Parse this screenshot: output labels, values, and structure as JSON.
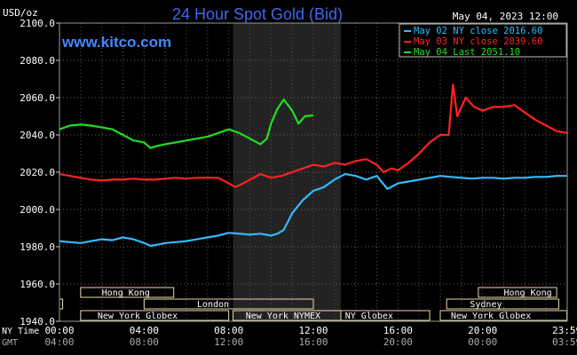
{
  "chart_data": {
    "type": "line",
    "title": "24 Hour Spot Gold (Bid)",
    "watermark": "www.kitco.com",
    "date_label": "May 04, 2023 12:00",
    "ylabel": "USD/oz",
    "ylim": [
      1940,
      2100
    ],
    "yticks": [
      "2100.0",
      "2080.0",
      "2060.0",
      "2040.0",
      "2020.0",
      "2000.0",
      "1980.0",
      "1960.0",
      "1940.0"
    ],
    "xlim": [
      0,
      24
    ],
    "x_unit": "hours NY time",
    "xtick_rows": [
      {
        "label": "NY Time",
        "ticks": [
          {
            "x": 0,
            "t": "00:00"
          },
          {
            "x": 4,
            "t": "04:00"
          },
          {
            "x": 8,
            "t": "08:00"
          },
          {
            "x": 12,
            "t": "12:00"
          },
          {
            "x": 16,
            "t": "16:00"
          },
          {
            "x": 20,
            "t": "20:00"
          },
          {
            "x": 23.98,
            "t": "23:59"
          }
        ]
      },
      {
        "label": "GMT",
        "ticks": [
          {
            "x": 0,
            "t": "04:00"
          },
          {
            "x": 4,
            "t": "08:00"
          },
          {
            "x": 8,
            "t": "12:00"
          },
          {
            "x": 12,
            "t": "16:00"
          },
          {
            "x": 16,
            "t": "20:00"
          },
          {
            "x": 20,
            "t": "00:00"
          },
          {
            "x": 23.98,
            "t": "03:59"
          }
        ]
      }
    ],
    "grid": true,
    "legend_position": "top-right",
    "shaded_region": [
      8.2,
      13.3
    ],
    "sessions": [
      {
        "name": "Hong Kong",
        "row": 0,
        "segments": [
          [
            1,
            5.4
          ]
        ],
        "label_at": 2
      },
      {
        "name": "Hong Kong",
        "row": 0,
        "segments": [
          [
            19.8,
            23.5
          ]
        ],
        "label_at": 21
      },
      {
        "name": "London",
        "row": 1,
        "segments": [
          [
            0,
            0.15
          ],
          [
            4,
            12
          ]
        ],
        "label_at": 6.5
      },
      {
        "name": "Sydney",
        "row": 1,
        "segments": [
          [
            18.3,
            23.6
          ]
        ],
        "label_at": 19.4
      },
      {
        "name": "New York Globex",
        "row": 2,
        "segments": [
          [
            1,
            8
          ]
        ],
        "label_at": 1.8
      },
      {
        "name": "New York NYMEX",
        "row": 2,
        "segments": [
          [
            8.2,
            13.3
          ]
        ],
        "label_at": 8.8
      },
      {
        "name": "NY Globex",
        "row": 2,
        "segments": [
          [
            13.3,
            17.5
          ]
        ],
        "label_at": 13.5
      },
      {
        "name": "New York Globex",
        "row": 2,
        "segments": [
          [
            18,
            23.98
          ]
        ],
        "label_at": 18.5
      }
    ],
    "series": [
      {
        "name": "May 02 NY close 2016.60",
        "color": "#33bbff",
        "points": [
          [
            0,
            1983
          ],
          [
            0.5,
            1982.5
          ],
          [
            1,
            1982
          ],
          [
            1.5,
            1983
          ],
          [
            2,
            1984
          ],
          [
            2.5,
            1983.5
          ],
          [
            3,
            1985
          ],
          [
            3.5,
            1984
          ],
          [
            4,
            1982
          ],
          [
            4.3,
            1980.5
          ],
          [
            4.6,
            1981
          ],
          [
            5,
            1982
          ],
          [
            5.5,
            1982.5
          ],
          [
            6,
            1983
          ],
          [
            6.5,
            1984
          ],
          [
            7,
            1985
          ],
          [
            7.5,
            1986
          ],
          [
            8,
            1987.5
          ],
          [
            8.5,
            1987
          ],
          [
            9,
            1986.5
          ],
          [
            9.5,
            1987
          ],
          [
            10,
            1986
          ],
          [
            10.3,
            1987
          ],
          [
            10.6,
            1989
          ],
          [
            11,
            1998
          ],
          [
            11.5,
            2005
          ],
          [
            12,
            2010
          ],
          [
            12.5,
            2012
          ],
          [
            13,
            2016
          ],
          [
            13.5,
            2019
          ],
          [
            14,
            2018
          ],
          [
            14.5,
            2016
          ],
          [
            15,
            2018
          ],
          [
            15.5,
            2011
          ],
          [
            16,
            2014
          ],
          [
            16.5,
            2015
          ],
          [
            17,
            2016
          ],
          [
            17.5,
            2017
          ],
          [
            18,
            2018
          ],
          [
            18.5,
            2017.5
          ],
          [
            19,
            2017
          ],
          [
            19.5,
            2016.5
          ],
          [
            20,
            2017
          ],
          [
            20.5,
            2017
          ],
          [
            21,
            2016.5
          ],
          [
            21.5,
            2017
          ],
          [
            22,
            2017
          ],
          [
            22.5,
            2017.5
          ],
          [
            23,
            2017.5
          ],
          [
            23.5,
            2018
          ],
          [
            24,
            2018
          ]
        ]
      },
      {
        "name": "May 03 NY close 2039.60",
        "color": "#ff2222",
        "points": [
          [
            0,
            2019
          ],
          [
            0.5,
            2018
          ],
          [
            1,
            2017
          ],
          [
            1.5,
            2016
          ],
          [
            2,
            2015.5
          ],
          [
            2.5,
            2016
          ],
          [
            3,
            2016
          ],
          [
            3.5,
            2016.5
          ],
          [
            4,
            2016
          ],
          [
            4.5,
            2016
          ],
          [
            5,
            2016.5
          ],
          [
            5.5,
            2017
          ],
          [
            6,
            2016.5
          ],
          [
            6.5,
            2017
          ],
          [
            7,
            2017
          ],
          [
            7.5,
            2017
          ],
          [
            8,
            2014
          ],
          [
            8.3,
            2012
          ],
          [
            8.6,
            2013.5
          ],
          [
            9,
            2016
          ],
          [
            9.5,
            2019
          ],
          [
            10,
            2017
          ],
          [
            10.5,
            2018
          ],
          [
            11,
            2020
          ],
          [
            11.5,
            2022
          ],
          [
            12,
            2024
          ],
          [
            12.5,
            2023
          ],
          [
            13,
            2025
          ],
          [
            13.5,
            2024
          ],
          [
            14,
            2026
          ],
          [
            14.5,
            2027
          ],
          [
            15,
            2024
          ],
          [
            15.3,
            2020
          ],
          [
            15.7,
            2022
          ],
          [
            16,
            2021
          ],
          [
            16.5,
            2025
          ],
          [
            17,
            2030
          ],
          [
            17.5,
            2036
          ],
          [
            18,
            2040
          ],
          [
            18.4,
            2040
          ],
          [
            18.6,
            2067
          ],
          [
            18.8,
            2050
          ],
          [
            19.2,
            2060
          ],
          [
            19.6,
            2055
          ],
          [
            20,
            2053
          ],
          [
            20.5,
            2055
          ],
          [
            21,
            2055
          ],
          [
            21.5,
            2056
          ],
          [
            22,
            2052
          ],
          [
            22.5,
            2048
          ],
          [
            23,
            2045
          ],
          [
            23.5,
            2042
          ],
          [
            24,
            2041
          ]
        ]
      },
      {
        "name": "May 04 Last 2051.10",
        "color": "#22dd22",
        "points": [
          [
            0,
            2043
          ],
          [
            0.5,
            2045
          ],
          [
            1,
            2045.5
          ],
          [
            1.5,
            2045
          ],
          [
            2,
            2044
          ],
          [
            2.5,
            2043
          ],
          [
            3,
            2040
          ],
          [
            3.5,
            2037
          ],
          [
            4,
            2036
          ],
          [
            4.3,
            2033
          ],
          [
            4.6,
            2034
          ],
          [
            5,
            2035
          ],
          [
            5.5,
            2036
          ],
          [
            6,
            2037
          ],
          [
            6.5,
            2038
          ],
          [
            7,
            2039
          ],
          [
            7.5,
            2041
          ],
          [
            8,
            2043
          ],
          [
            8.5,
            2041
          ],
          [
            9,
            2038
          ],
          [
            9.5,
            2035
          ],
          [
            9.8,
            2038
          ],
          [
            10,
            2046
          ],
          [
            10.3,
            2054
          ],
          [
            10.6,
            2059
          ],
          [
            11,
            2053
          ],
          [
            11.3,
            2046
          ],
          [
            11.6,
            2050
          ],
          [
            12,
            2050.5
          ]
        ]
      }
    ]
  }
}
